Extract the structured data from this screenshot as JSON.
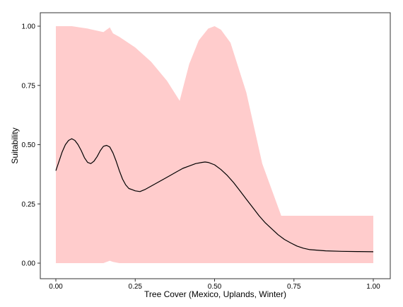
{
  "chart_data": {
    "type": "area",
    "title": "",
    "xlabel": "Tree Cover (Mexico, Uplands, Winter)",
    "ylabel": "Suitability",
    "xlim": [
      0,
      1
    ],
    "ylim": [
      0,
      1
    ],
    "x_ticks": [
      "0.00",
      "0.25",
      "0.50",
      "0.75",
      "1.00"
    ],
    "y_ticks": [
      "0.00",
      "0.25",
      "0.50",
      "0.75",
      "1.00"
    ],
    "grid": false,
    "legend": "none",
    "colors": {
      "band": "#ffcccc",
      "line": "#000000",
      "frame": "#333333"
    },
    "series": [
      {
        "kind": "band",
        "x": [
          0.0,
          0.05,
          0.1,
          0.15,
          0.16,
          0.17,
          0.18,
          0.2,
          0.25,
          0.3,
          0.35,
          0.39,
          0.42,
          0.45,
          0.48,
          0.5,
          0.52,
          0.55,
          0.6,
          0.65,
          0.71,
          0.75,
          1.0
        ],
        "upper": [
          1.0,
          1.0,
          0.99,
          0.975,
          0.985,
          0.995,
          0.97,
          0.955,
          0.91,
          0.85,
          0.77,
          0.685,
          0.84,
          0.94,
          0.99,
          1.0,
          0.985,
          0.93,
          0.72,
          0.42,
          0.2,
          0.2,
          0.2
        ],
        "lower": [
          0.0,
          0.0,
          0.0,
          0.0,
          0.005,
          0.01,
          0.005,
          0.0,
          0.0,
          0.0,
          0.0,
          0.0,
          0.0,
          0.0,
          0.0,
          0.0,
          0.0,
          0.0,
          0.0,
          0.0,
          0.0,
          0.0,
          0.0
        ]
      },
      {
        "kind": "line",
        "x": [
          0.0,
          0.01,
          0.02,
          0.03,
          0.04,
          0.05,
          0.06,
          0.07,
          0.08,
          0.09,
          0.1,
          0.11,
          0.12,
          0.13,
          0.14,
          0.15,
          0.16,
          0.17,
          0.18,
          0.19,
          0.2,
          0.21,
          0.22,
          0.23,
          0.24,
          0.25,
          0.265,
          0.28,
          0.3,
          0.32,
          0.34,
          0.36,
          0.38,
          0.4,
          0.42,
          0.44,
          0.46,
          0.47,
          0.48,
          0.5,
          0.52,
          0.54,
          0.56,
          0.58,
          0.6,
          0.62,
          0.64,
          0.66,
          0.68,
          0.7,
          0.72,
          0.74,
          0.76,
          0.78,
          0.8,
          0.85,
          0.9,
          0.95,
          1.0
        ],
        "y": [
          0.39,
          0.43,
          0.47,
          0.5,
          0.518,
          0.525,
          0.518,
          0.5,
          0.475,
          0.445,
          0.425,
          0.42,
          0.43,
          0.45,
          0.475,
          0.493,
          0.497,
          0.49,
          0.465,
          0.43,
          0.39,
          0.355,
          0.33,
          0.315,
          0.31,
          0.305,
          0.302,
          0.31,
          0.325,
          0.34,
          0.355,
          0.37,
          0.385,
          0.4,
          0.41,
          0.42,
          0.425,
          0.427,
          0.425,
          0.415,
          0.395,
          0.37,
          0.34,
          0.305,
          0.27,
          0.235,
          0.2,
          0.17,
          0.145,
          0.12,
          0.1,
          0.085,
          0.072,
          0.063,
          0.057,
          0.052,
          0.05,
          0.049,
          0.048
        ]
      }
    ]
  }
}
